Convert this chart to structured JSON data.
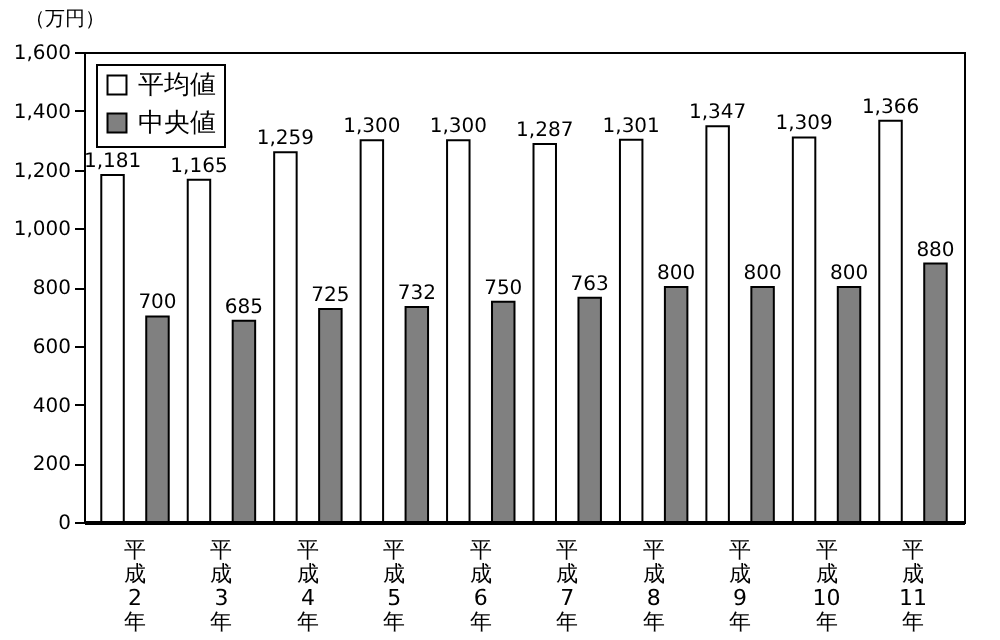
{
  "chart_data": {
    "type": "bar",
    "ylabel": "（万円）",
    "categories": [
      "平成2年",
      "平成3年",
      "平成4年",
      "平成5年",
      "平成6年",
      "平成7年",
      "平成8年",
      "平成9年",
      "平成10年",
      "平成11年"
    ],
    "series": [
      {
        "name": "平均値",
        "color": "#ffffff",
        "values": [
          1181,
          1165,
          1259,
          1300,
          1300,
          1287,
          1301,
          1347,
          1309,
          1366
        ],
        "value_labels": [
          "1,181",
          "1,165",
          "1,259",
          "1,300",
          "1,300",
          "1,287",
          "1,301",
          "1,347",
          "1,309",
          "1,366"
        ]
      },
      {
        "name": "中央値",
        "color": "#808080",
        "values": [
          700,
          685,
          725,
          732,
          750,
          763,
          800,
          800,
          800,
          880
        ],
        "value_labels": [
          "700",
          "685",
          "725",
          "732",
          "750",
          "763",
          "800",
          "800",
          "800",
          "880"
        ]
      }
    ],
    "ylim": [
      0,
      1600
    ],
    "yticks": [
      0,
      200,
      400,
      600,
      800,
      {
        "value": 1000,
        "label": "1,000"
      },
      {
        "value": 1200,
        "label": "1,200"
      },
      {
        "value": 1400,
        "label": "1,400"
      },
      {
        "value": 1600,
        "label": "1,600"
      }
    ],
    "grid": false,
    "legend": "top left"
  }
}
